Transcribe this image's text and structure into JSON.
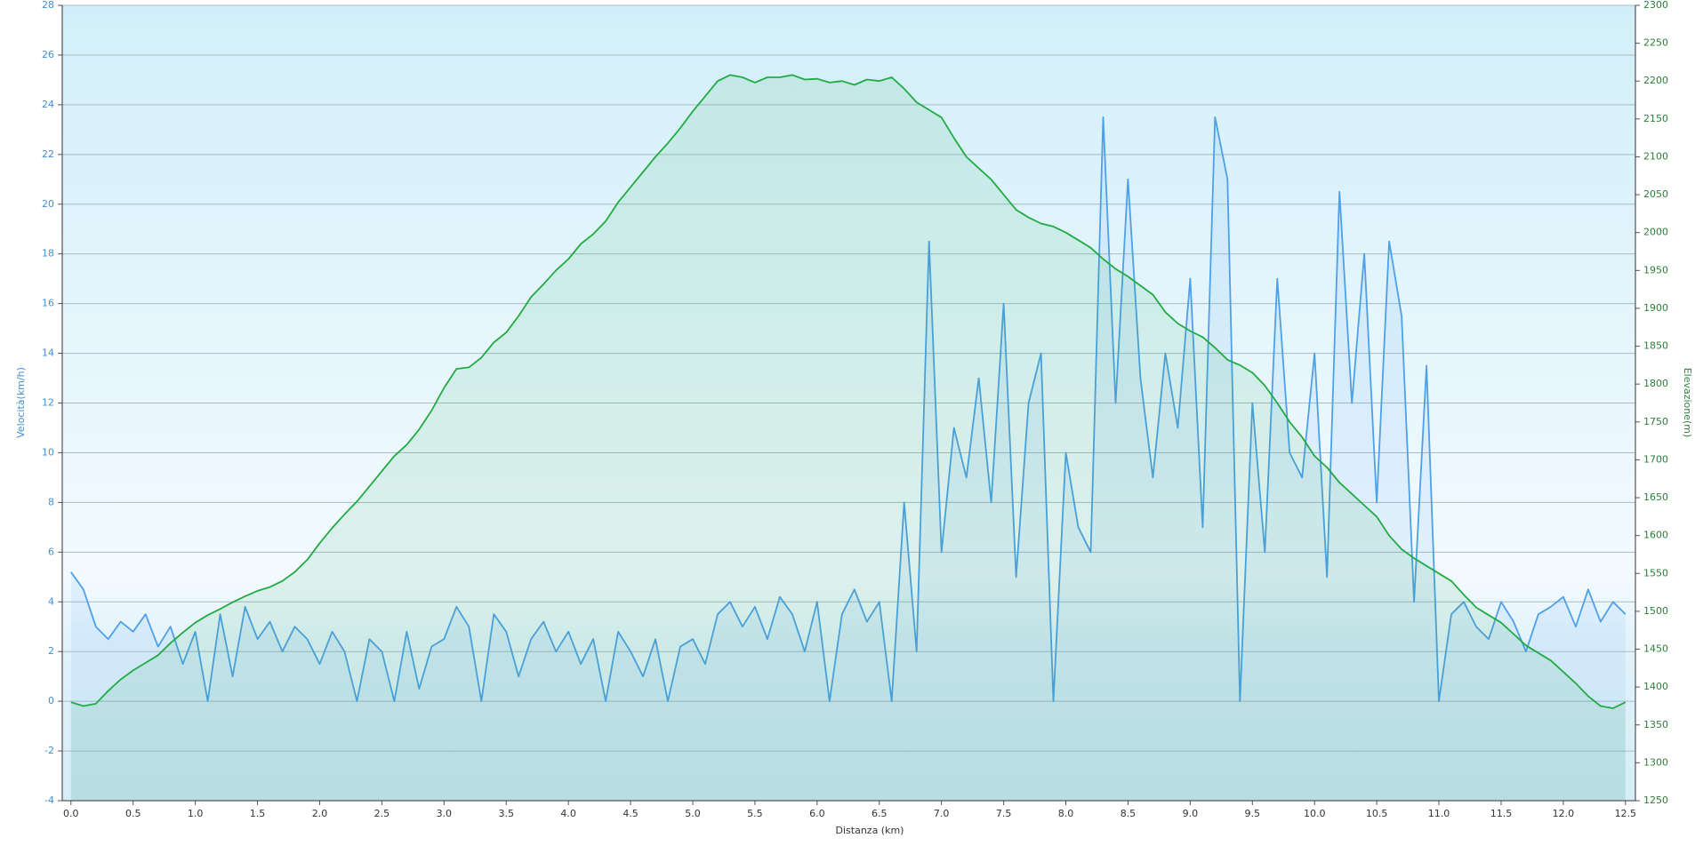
{
  "chart_data": {
    "type": "line",
    "x_label": "Distanza  (km)",
    "y_label": "Velocità(km/h)",
    "y2_label": "Elevazione(m)",
    "x": [
      0.0,
      0.1,
      0.2,
      0.3,
      0.4,
      0.5,
      0.6,
      0.7,
      0.8,
      0.9,
      1.0,
      1.1,
      1.2,
      1.3,
      1.4,
      1.5,
      1.6,
      1.7,
      1.8,
      1.9,
      2.0,
      2.1,
      2.2,
      2.3,
      2.4,
      2.5,
      2.6,
      2.7,
      2.8,
      2.9,
      3.0,
      3.1,
      3.2,
      3.3,
      3.4,
      3.5,
      3.6,
      3.7,
      3.8,
      3.9,
      4.0,
      4.1,
      4.2,
      4.3,
      4.4,
      4.5,
      4.6,
      4.7,
      4.8,
      4.9,
      5.0,
      5.1,
      5.2,
      5.3,
      5.4,
      5.5,
      5.6,
      5.7,
      5.8,
      5.9,
      6.0,
      6.1,
      6.2,
      6.3,
      6.4,
      6.5,
      6.6,
      6.7,
      6.8,
      6.9,
      7.0,
      7.1,
      7.2,
      7.3,
      7.4,
      7.5,
      7.6,
      7.7,
      7.8,
      7.9,
      8.0,
      8.1,
      8.2,
      8.3,
      8.4,
      8.5,
      8.6,
      8.7,
      8.8,
      8.9,
      9.0,
      9.1,
      9.2,
      9.3,
      9.4,
      9.5,
      9.6,
      9.7,
      9.8,
      9.9,
      10.0,
      10.1,
      10.2,
      10.3,
      10.4,
      10.5,
      10.6,
      10.7,
      10.8,
      10.9,
      11.0,
      11.1,
      11.2,
      11.3,
      11.4,
      11.5,
      11.6,
      11.7,
      11.8,
      11.9,
      12.0,
      12.1,
      12.2,
      12.3,
      12.4,
      12.5
    ],
    "series": [
      {
        "name": "Velocità",
        "color": "#4ea0e8",
        "axis": "y",
        "values": [
          5.2,
          4.5,
          3.0,
          2.5,
          3.2,
          2.8,
          3.5,
          2.2,
          3.0,
          1.5,
          2.8,
          0,
          3.5,
          1.0,
          3.8,
          2.5,
          3.2,
          2.0,
          3.0,
          2.5,
          1.5,
          2.8,
          2.0,
          0,
          2.5,
          2.0,
          0,
          2.8,
          0.5,
          2.2,
          2.5,
          3.8,
          3.0,
          0,
          3.5,
          2.8,
          1.0,
          2.5,
          3.2,
          2.0,
          2.8,
          1.5,
          2.5,
          0,
          2.8,
          2.0,
          1.0,
          2.5,
          0,
          2.2,
          2.5,
          1.5,
          3.5,
          4.0,
          3.0,
          3.8,
          2.5,
          4.2,
          3.5,
          2.0,
          4.0,
          0,
          3.5,
          4.5,
          3.2,
          4.0,
          0,
          8,
          2,
          18.5,
          6,
          11,
          9,
          13,
          8,
          16,
          5,
          12,
          14,
          0,
          10,
          7,
          6,
          23.5,
          12,
          21,
          13,
          9,
          14,
          11,
          17,
          7,
          23.5,
          21,
          0,
          12,
          6,
          17,
          10,
          9,
          14,
          5,
          20.5,
          12,
          18,
          8,
          18.5,
          15.5,
          4,
          13.5,
          0,
          3.5,
          4.0,
          3.0,
          2.5,
          4.0,
          3.2,
          2.0,
          3.5,
          3.8,
          4.2,
          3.0,
          4.5,
          3.2,
          4.0,
          3.5
        ]
      },
      {
        "name": "Elevazione",
        "color": "#22aa44",
        "axis": "y2",
        "values": [
          1380,
          1375,
          1378,
          1395,
          1410,
          1422,
          1432,
          1442,
          1458,
          1472,
          1485,
          1495,
          1503,
          1512,
          1520,
          1527,
          1532,
          1540,
          1552,
          1568,
          1590,
          1610,
          1628,
          1645,
          1665,
          1685,
          1705,
          1720,
          1740,
          1765,
          1795,
          1820,
          1822,
          1835,
          1855,
          1868,
          1890,
          1915,
          1932,
          1950,
          1965,
          1985,
          1998,
          2015,
          2040,
          2060,
          2080,
          2100,
          2118,
          2138,
          2160,
          2180,
          2200,
          2208,
          2205,
          2198,
          2205,
          2205,
          2208,
          2202,
          2203,
          2198,
          2200,
          2195,
          2202,
          2200,
          2205,
          2190,
          2172,
          2162,
          2152,
          2125,
          2100,
          2085,
          2070,
          2050,
          2030,
          2020,
          2012,
          2008,
          2000,
          1990,
          1980,
          1965,
          1952,
          1942,
          1930,
          1918,
          1895,
          1880,
          1870,
          1862,
          1848,
          1832,
          1825,
          1815,
          1798,
          1775,
          1750,
          1730,
          1705,
          1690,
          1670,
          1655,
          1640,
          1625,
          1600,
          1582,
          1570,
          1560,
          1550,
          1540,
          1522,
          1505,
          1495,
          1485,
          1470,
          1455,
          1445,
          1435,
          1420,
          1405,
          1388,
          1375,
          1372,
          1380
        ]
      }
    ],
    "xlim": [
      -0.07,
      12.58
    ],
    "xticks": [
      {
        "value": 0,
        "label": "0.0"
      },
      {
        "value": 0.5,
        "label": "0.5"
      },
      {
        "value": 1,
        "label": "1.0"
      },
      {
        "value": 1.5,
        "label": "1.5"
      },
      {
        "value": 2,
        "label": "2.0"
      },
      {
        "value": 2.5,
        "label": "2.5"
      },
      {
        "value": 3,
        "label": "3.0"
      },
      {
        "value": 3.5,
        "label": "3.5"
      },
      {
        "value": 4,
        "label": "4.0"
      },
      {
        "value": 4.5,
        "label": "4.5"
      },
      {
        "value": 5,
        "label": "5.0"
      },
      {
        "value": 5.5,
        "label": "5.5"
      },
      {
        "value": 6,
        "label": "6.0"
      },
      {
        "value": 6.5,
        "label": "6.5"
      },
      {
        "value": 7,
        "label": "7.0"
      },
      {
        "value": 7.5,
        "label": "7.5"
      },
      {
        "value": 8,
        "label": "8.0"
      },
      {
        "value": 8.5,
        "label": "8.5"
      },
      {
        "value": 9,
        "label": "9.0"
      },
      {
        "value": 9.5,
        "label": "9.5"
      },
      {
        "value": 10,
        "label": "10.0"
      },
      {
        "value": 10.5,
        "label": "10.5"
      },
      {
        "value": 11,
        "label": "11.0"
      },
      {
        "value": 11.5,
        "label": "11.5"
      },
      {
        "value": 12,
        "label": "12.0"
      },
      {
        "value": 12.5,
        "label": "12.5"
      }
    ],
    "ylim": [
      -4,
      28
    ],
    "yticks": [
      -4,
      -2,
      0,
      2,
      4,
      6,
      8,
      10,
      12,
      14,
      16,
      18,
      20,
      22,
      24,
      26,
      28
    ],
    "y2lim": [
      1250,
      2300
    ],
    "y2ticks": [
      1250,
      1300,
      1350,
      1400,
      1450,
      1500,
      1550,
      1600,
      1650,
      1700,
      1750,
      1800,
      1850,
      1900,
      1950,
      2000,
      2050,
      2100,
      2150,
      2200,
      2250,
      2300
    ],
    "grid": true
  }
}
